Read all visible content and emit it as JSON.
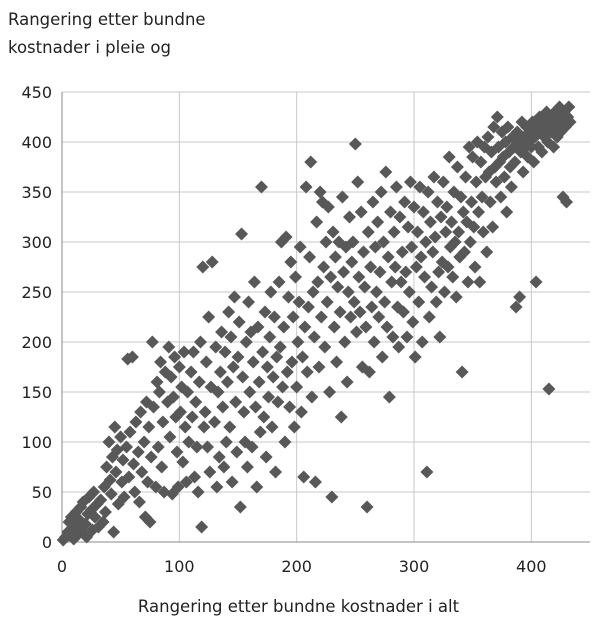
{
  "chart_data": {
    "type": "scatter",
    "ylabel_lines": [
      "Rangering etter bundne",
      "kostnader i pleie og"
    ],
    "xlabel": "Rangering etter bundne kostnader i alt",
    "xlim": [
      0,
      450
    ],
    "ylim": [
      0,
      450
    ],
    "xticks": [
      "0",
      "100",
      "200",
      "300",
      "400"
    ],
    "yticks": [
      "0",
      "50",
      "100",
      "150",
      "200",
      "250",
      "300",
      "350",
      "400",
      "450"
    ],
    "grid": true,
    "marker": "diamond",
    "marker_color": "#585858",
    "points": [
      [
        1,
        2
      ],
      [
        3,
        5
      ],
      [
        5,
        10
      ],
      [
        6,
        20
      ],
      [
        8,
        25
      ],
      [
        10,
        3
      ],
      [
        11,
        15
      ],
      [
        12,
        30
      ],
      [
        14,
        8
      ],
      [
        15,
        22
      ],
      [
        16,
        35
      ],
      [
        17,
        12
      ],
      [
        18,
        40
      ],
      [
        20,
        18
      ],
      [
        21,
        5
      ],
      [
        22,
        28
      ],
      [
        23,
        45
      ],
      [
        25,
        32
      ],
      [
        26,
        12
      ],
      [
        27,
        50
      ],
      [
        28,
        25
      ],
      [
        30,
        38
      ],
      [
        31,
        15
      ],
      [
        33,
        42
      ],
      [
        35,
        20
      ],
      [
        36,
        55
      ],
      [
        37,
        30
      ],
      [
        38,
        75
      ],
      [
        40,
        100
      ],
      [
        41,
        62
      ],
      [
        42,
        48
      ],
      [
        43,
        85
      ],
      [
        44,
        10
      ],
      [
        45,
        115
      ],
      [
        46,
        70
      ],
      [
        47,
        92
      ],
      [
        48,
        38
      ],
      [
        50,
        105
      ],
      [
        51,
        60
      ],
      [
        52,
        82
      ],
      [
        53,
        45
      ],
      [
        55,
        95
      ],
      [
        56,
        183
      ],
      [
        57,
        65
      ],
      [
        58,
        110
      ],
      [
        60,
        185
      ],
      [
        61,
        78
      ],
      [
        62,
        50
      ],
      [
        63,
        120
      ],
      [
        65,
        90
      ],
      [
        66,
        40
      ],
      [
        67,
        130
      ],
      [
        68,
        70
      ],
      [
        70,
        100
      ],
      [
        71,
        25
      ],
      [
        72,
        140
      ],
      [
        73,
        60
      ],
      [
        74,
        115
      ],
      [
        75,
        20
      ],
      [
        76,
        85
      ],
      [
        77,
        200
      ],
      [
        78,
        135
      ],
      [
        80,
        55
      ],
      [
        81,
        160
      ],
      [
        82,
        95
      ],
      [
        83,
        150
      ],
      [
        84,
        180
      ],
      [
        85,
        75
      ],
      [
        86,
        120
      ],
      [
        87,
        50
      ],
      [
        88,
        170
      ],
      [
        90,
        140
      ],
      [
        91,
        195
      ],
      [
        92,
        105
      ],
      [
        93,
        165
      ],
      [
        94,
        48
      ],
      [
        95,
        145
      ],
      [
        96,
        185
      ],
      [
        97,
        125
      ],
      [
        98,
        90
      ],
      [
        99,
        55
      ],
      [
        100,
        175
      ],
      [
        101,
        130
      ],
      [
        102,
        155
      ],
      [
        103,
        80
      ],
      [
        104,
        190
      ],
      [
        105,
        115
      ],
      [
        106,
        60
      ],
      [
        107,
        150
      ],
      [
        108,
        100
      ],
      [
        110,
        170
      ],
      [
        111,
        125
      ],
      [
        112,
        190
      ],
      [
        113,
        65
      ],
      [
        114,
        140
      ],
      [
        115,
        95
      ],
      [
        116,
        50
      ],
      [
        117,
        160
      ],
      [
        118,
        200
      ],
      [
        119,
        15
      ],
      [
        120,
        275
      ],
      [
        121,
        115
      ],
      [
        122,
        130
      ],
      [
        123,
        180
      ],
      [
        124,
        95
      ],
      [
        125,
        225
      ],
      [
        126,
        70
      ],
      [
        127,
        155
      ],
      [
        128,
        280
      ],
      [
        130,
        120
      ],
      [
        131,
        195
      ],
      [
        132,
        55
      ],
      [
        133,
        150
      ],
      [
        134,
        85
      ],
      [
        135,
        170
      ],
      [
        136,
        210
      ],
      [
        137,
        135
      ],
      [
        138,
        75
      ],
      [
        139,
        190
      ],
      [
        140,
        100
      ],
      [
        141,
        160
      ],
      [
        142,
        230
      ],
      [
        143,
        115
      ],
      [
        144,
        205
      ],
      [
        145,
        60
      ],
      [
        146,
        175
      ],
      [
        147,
        245
      ],
      [
        148,
        140
      ],
      [
        149,
        90
      ],
      [
        150,
        185
      ],
      [
        151,
        220
      ],
      [
        152,
        35
      ],
      [
        153,
        308
      ],
      [
        154,
        165
      ],
      [
        155,
        130
      ],
      [
        156,
        100
      ],
      [
        157,
        200
      ],
      [
        158,
        75
      ],
      [
        159,
        240
      ],
      [
        160,
        150
      ],
      [
        161,
        210
      ],
      [
        162,
        95
      ],
      [
        163,
        180
      ],
      [
        164,
        260
      ],
      [
        165,
        135
      ],
      [
        166,
        55
      ],
      [
        167,
        215
      ],
      [
        168,
        160
      ],
      [
        169,
        110
      ],
      [
        170,
        355
      ],
      [
        171,
        190
      ],
      [
        172,
        125
      ],
      [
        173,
        230
      ],
      [
        174,
        85
      ],
      [
        175,
        175
      ],
      [
        176,
        145
      ],
      [
        177,
        205
      ],
      [
        178,
        250
      ],
      [
        179,
        115
      ],
      [
        180,
        165
      ],
      [
        181,
        225
      ],
      [
        182,
        70
      ],
      [
        183,
        185
      ],
      [
        184,
        140
      ],
      [
        185,
        260
      ],
      [
        186,
        195
      ],
      [
        187,
        300
      ],
      [
        188,
        155
      ],
      [
        189,
        215
      ],
      [
        190,
        100
      ],
      [
        191,
        305
      ],
      [
        192,
        170
      ],
      [
        193,
        245
      ],
      [
        194,
        135
      ],
      [
        195,
        280
      ],
      [
        196,
        180
      ],
      [
        197,
        225
      ],
      [
        198,
        115
      ],
      [
        199,
        265
      ],
      [
        200,
        155
      ],
      [
        201,
        200
      ],
      [
        202,
        240
      ],
      [
        203,
        295
      ],
      [
        204,
        130
      ],
      [
        205,
        185
      ],
      [
        206,
        65
      ],
      [
        207,
        215
      ],
      [
        208,
        355
      ],
      [
        209,
        170
      ],
      [
        210,
        235
      ],
      [
        211,
        285
      ],
      [
        212,
        380
      ],
      [
        213,
        145
      ],
      [
        214,
        250
      ],
      [
        215,
        205
      ],
      [
        216,
        60
      ],
      [
        217,
        320
      ],
      [
        218,
        260
      ],
      [
        219,
        175
      ],
      [
        220,
        350
      ],
      [
        221,
        225
      ],
      [
        222,
        340
      ],
      [
        223,
        275
      ],
      [
        224,
        195
      ],
      [
        225,
        300
      ],
      [
        226,
        240
      ],
      [
        227,
        335
      ],
      [
        228,
        150
      ],
      [
        229,
        265
      ],
      [
        230,
        45
      ],
      [
        231,
        310
      ],
      [
        232,
        215
      ],
      [
        233,
        285
      ],
      [
        234,
        180
      ],
      [
        235,
        255
      ],
      [
        236,
        300
      ],
      [
        237,
        230
      ],
      [
        238,
        125
      ],
      [
        239,
        345
      ],
      [
        240,
        270
      ],
      [
        241,
        200
      ],
      [
        242,
        295
      ],
      [
        243,
        160
      ],
      [
        244,
        250
      ],
      [
        245,
        325
      ],
      [
        246,
        225
      ],
      [
        247,
        280
      ],
      [
        248,
        300
      ],
      [
        249,
        240
      ],
      [
        250,
        398
      ],
      [
        251,
        210
      ],
      [
        252,
        360
      ],
      [
        253,
        265
      ],
      [
        254,
        230
      ],
      [
        255,
        330
      ],
      [
        256,
        175
      ],
      [
        257,
        290
      ],
      [
        258,
        255
      ],
      [
        259,
        215
      ],
      [
        260,
        35
      ],
      [
        261,
        310
      ],
      [
        262,
        170
      ],
      [
        263,
        275
      ],
      [
        264,
        235
      ],
      [
        265,
        340
      ],
      [
        266,
        200
      ],
      [
        267,
        295
      ],
      [
        268,
        250
      ],
      [
        269,
        320
      ],
      [
        270,
        225
      ],
      [
        271,
        270
      ],
      [
        272,
        350
      ],
      [
        273,
        185
      ],
      [
        274,
        300
      ],
      [
        275,
        240
      ],
      [
        276,
        370
      ],
      [
        277,
        215
      ],
      [
        278,
        285
      ],
      [
        279,
        145
      ],
      [
        280,
        330
      ],
      [
        281,
        260
      ],
      [
        282,
        205
      ],
      [
        283,
        310
      ],
      [
        284,
        275
      ],
      [
        285,
        355
      ],
      [
        286,
        235
      ],
      [
        287,
        195
      ],
      [
        288,
        325
      ],
      [
        289,
        260
      ],
      [
        290,
        290
      ],
      [
        291,
        230
      ],
      [
        292,
        340
      ],
      [
        293,
        270
      ],
      [
        294,
        205
      ],
      [
        295,
        315
      ],
      [
        296,
        250
      ],
      [
        297,
        360
      ],
      [
        298,
        295
      ],
      [
        299,
        220
      ],
      [
        300,
        335
      ],
      [
        301,
        185
      ],
      [
        302,
        275
      ],
      [
        303,
        310
      ],
      [
        304,
        240
      ],
      [
        305,
        355
      ],
      [
        306,
        285
      ],
      [
        307,
        200
      ],
      [
        308,
        330
      ],
      [
        309,
        265
      ],
      [
        310,
        300
      ],
      [
        311,
        70
      ],
      [
        312,
        350
      ],
      [
        313,
        225
      ],
      [
        314,
        320
      ],
      [
        315,
        255
      ],
      [
        316,
        290
      ],
      [
        317,
        365
      ],
      [
        318,
        305
      ],
      [
        319,
        240
      ],
      [
        320,
        340
      ],
      [
        321,
        270
      ],
      [
        322,
        205
      ],
      [
        323,
        325
      ],
      [
        324,
        280
      ],
      [
        325,
        360
      ],
      [
        326,
        250
      ],
      [
        327,
        310
      ],
      [
        328,
        335
      ],
      [
        329,
        275
      ],
      [
        330,
        385
      ],
      [
        331,
        295
      ],
      [
        332,
        320
      ],
      [
        333,
        265
      ],
      [
        334,
        350
      ],
      [
        335,
        300
      ],
      [
        336,
        245
      ],
      [
        337,
        375
      ],
      [
        338,
        310
      ],
      [
        339,
        285
      ],
      [
        340,
        345
      ],
      [
        341,
        170
      ],
      [
        342,
        330
      ],
      [
        343,
        290
      ],
      [
        344,
        365
      ],
      [
        345,
        320
      ],
      [
        346,
        260
      ],
      [
        347,
        395
      ],
      [
        348,
        300
      ],
      [
        349,
        340
      ],
      [
        350,
        385
      ],
      [
        351,
        315
      ],
      [
        352,
        275
      ],
      [
        353,
        360
      ],
      [
        354,
        400
      ],
      [
        355,
        330
      ],
      [
        356,
        260
      ],
      [
        357,
        380
      ],
      [
        358,
        345
      ],
      [
        359,
        310
      ],
      [
        360,
        395
      ],
      [
        361,
        365
      ],
      [
        362,
        290
      ],
      [
        363,
        405
      ],
      [
        364,
        370
      ],
      [
        365,
        340
      ],
      [
        366,
        390
      ],
      [
        367,
        315
      ],
      [
        368,
        415
      ],
      [
        369,
        375
      ],
      [
        370,
        360
      ],
      [
        371,
        425
      ],
      [
        372,
        395
      ],
      [
        373,
        380
      ],
      [
        374,
        345
      ],
      [
        375,
        410
      ],
      [
        376,
        385
      ],
      [
        377,
        365
      ],
      [
        378,
        400
      ],
      [
        379,
        330
      ],
      [
        380,
        415
      ],
      [
        381,
        390
      ],
      [
        382,
        375
      ],
      [
        383,
        355
      ],
      [
        384,
        405
      ],
      [
        385,
        395
      ],
      [
        386,
        380
      ],
      [
        387,
        235
      ],
      [
        388,
        410
      ],
      [
        389,
        400
      ],
      [
        390,
        245
      ],
      [
        391,
        390
      ],
      [
        392,
        420
      ],
      [
        393,
        370
      ],
      [
        394,
        405
      ],
      [
        395,
        395
      ],
      [
        396,
        415
      ],
      [
        397,
        385
      ],
      [
        398,
        400
      ],
      [
        399,
        410
      ],
      [
        400,
        395
      ],
      [
        401,
        420
      ],
      [
        402,
        380
      ],
      [
        403,
        405
      ],
      [
        404,
        260
      ],
      [
        405,
        415
      ],
      [
        406,
        395
      ],
      [
        407,
        425
      ],
      [
        408,
        410
      ],
      [
        409,
        390
      ],
      [
        410,
        420
      ],
      [
        411,
        405
      ],
      [
        412,
        415
      ],
      [
        413,
        430
      ],
      [
        414,
        400
      ],
      [
        415,
        153
      ],
      [
        416,
        425
      ],
      [
        417,
        410
      ],
      [
        418,
        420
      ],
      [
        419,
        395
      ],
      [
        420,
        430
      ],
      [
        421,
        415
      ],
      [
        422,
        405
      ],
      [
        423,
        425
      ],
      [
        424,
        435
      ],
      [
        425,
        410
      ],
      [
        426,
        420
      ],
      [
        427,
        345
      ],
      [
        428,
        430
      ],
      [
        429,
        415
      ],
      [
        430,
        340
      ],
      [
        431,
        425
      ],
      [
        432,
        435
      ],
      [
        433,
        420
      ]
    ]
  }
}
